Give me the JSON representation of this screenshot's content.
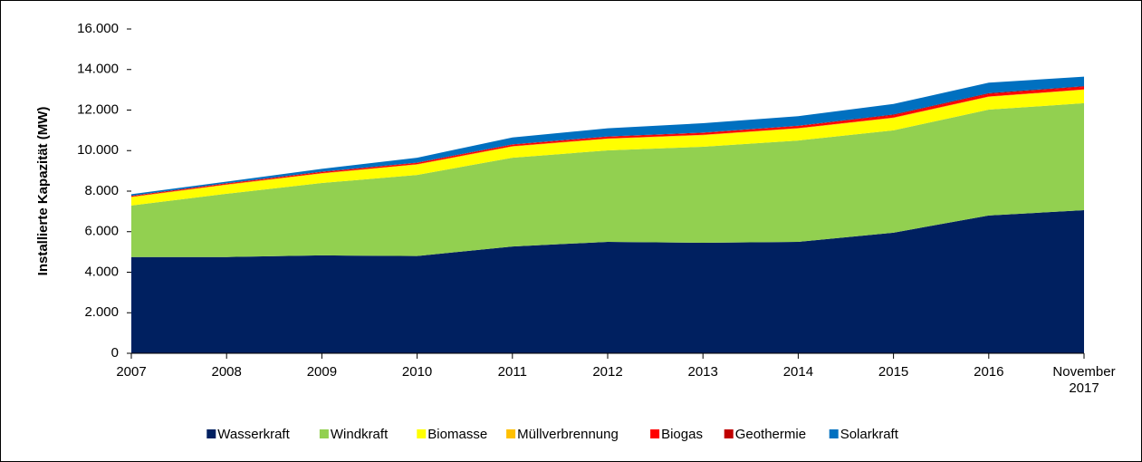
{
  "chart_data": {
    "type": "stacked_area",
    "y_label": "Installierte Kapazität (MW)",
    "categories": [
      "2007",
      "2008",
      "2009",
      "2010",
      "2011",
      "2012",
      "2013",
      "2014",
      "2015",
      "2016",
      "November 2017"
    ],
    "series": [
      {
        "name": "Wasserkraft",
        "color": "#002060",
        "values": [
          4750,
          4750,
          4830,
          4800,
          5270,
          5500,
          5450,
          5500,
          5950,
          6800,
          7060
        ]
      },
      {
        "name": "Windkraft",
        "color": "#92d050",
        "values": [
          2540,
          3120,
          3570,
          4000,
          4380,
          4510,
          4740,
          5000,
          5050,
          5220,
          5280
        ]
      },
      {
        "name": "Biomasse",
        "color": "#ffff00",
        "values": [
          400,
          430,
          460,
          500,
          540,
          560,
          560,
          580,
          600,
          620,
          650
        ]
      },
      {
        "name": "Müllverbrennung",
        "color": "#ffc000",
        "values": [
          30,
          30,
          30,
          30,
          30,
          30,
          30,
          30,
          30,
          30,
          30
        ]
      },
      {
        "name": "Biogas",
        "color": "#ff0000",
        "values": [
          30,
          40,
          50,
          60,
          70,
          80,
          90,
          100,
          110,
          120,
          120
        ]
      },
      {
        "name": "Geothermie",
        "color": "#c00000",
        "values": [
          20,
          20,
          20,
          20,
          20,
          20,
          20,
          20,
          40,
          40,
          40
        ]
      },
      {
        "name": "Solarkraft",
        "color": "#0070c0",
        "values": [
          80,
          80,
          140,
          240,
          340,
          400,
          460,
          470,
          520,
          520,
          470
        ]
      }
    ],
    "ylim": [
      0,
      16000
    ],
    "yticks": [
      0,
      {
        "value": 2000,
        "label": "2.000"
      },
      {
        "value": 4000,
        "label": "4.000"
      },
      {
        "value": 6000,
        "label": "6.000"
      },
      {
        "value": 8000,
        "label": "8.000"
      },
      {
        "value": 10000,
        "label": "10.000"
      },
      {
        "value": 12000,
        "label": "12.000"
      },
      {
        "value": 14000,
        "label": "14.000"
      },
      {
        "value": 16000,
        "label": "16.000"
      }
    ],
    "legend": "bottom"
  }
}
